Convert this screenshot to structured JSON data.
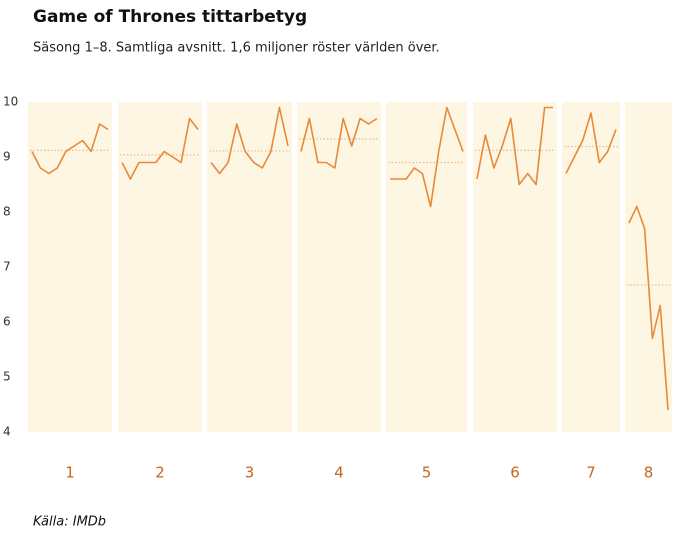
{
  "chart_data": {
    "type": "line",
    "title": "Game of Thrones tittarbetyg",
    "subtitle": "Säsong 1–8. Samtliga avsnitt. 1,6 miljoner röster världen över.",
    "source": "Källa: IMDb",
    "color": "#e8893a",
    "average_color": "#f0b97f",
    "panel_color": "#fdf6e3",
    "ylim": [
      4,
      10
    ],
    "yticks": [
      4,
      5,
      6,
      7,
      8,
      9,
      10
    ],
    "series": [
      {
        "name": "1",
        "values": [
          9.1,
          8.8,
          8.7,
          8.8,
          9.1,
          9.2,
          9.3,
          9.1,
          9.6,
          9.5
        ],
        "average": 9.12
      },
      {
        "name": "2",
        "values": [
          8.9,
          8.6,
          8.9,
          8.9,
          8.9,
          9.1,
          9.0,
          8.9,
          9.7,
          9.5
        ],
        "average": 9.04
      },
      {
        "name": "3",
        "values": [
          8.9,
          8.7,
          8.9,
          9.6,
          9.1,
          8.9,
          8.8,
          9.1,
          9.9,
          9.2
        ],
        "average": 9.11
      },
      {
        "name": "4",
        "values": [
          9.1,
          9.7,
          8.9,
          8.9,
          8.8,
          9.7,
          9.2,
          9.7,
          9.6,
          9.7
        ],
        "average": 9.33
      },
      {
        "name": "5",
        "values": [
          8.6,
          8.6,
          8.6,
          8.8,
          8.7,
          8.1,
          9.1,
          9.9,
          9.5,
          9.1
        ],
        "average": 8.9
      },
      {
        "name": "6",
        "values": [
          8.6,
          9.4,
          8.8,
          9.2,
          9.7,
          8.5,
          8.7,
          8.5,
          9.9,
          9.9
        ],
        "average": 9.12
      },
      {
        "name": "7",
        "values": [
          8.7,
          9.0,
          9.3,
          9.8,
          8.9,
          9.1,
          9.5
        ],
        "average": 9.19
      },
      {
        "name": "8",
        "values": [
          7.8,
          8.1,
          7.7,
          5.7,
          6.3,
          4.4
        ],
        "average": 6.67
      }
    ]
  }
}
